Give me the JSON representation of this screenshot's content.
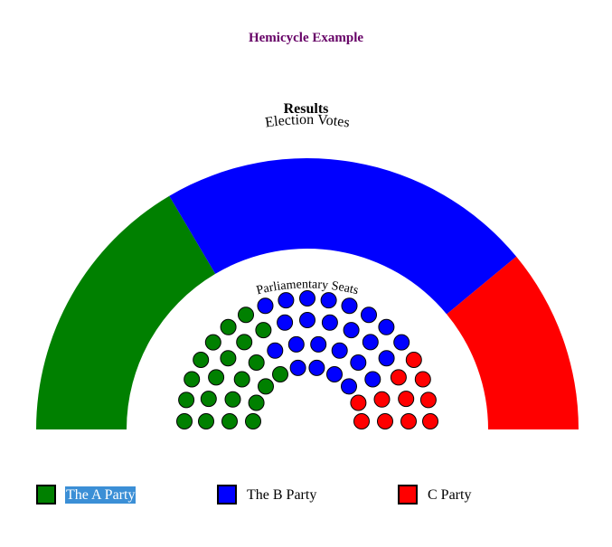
{
  "page": {
    "title": "Hemicycle Example",
    "title_color": "#660066"
  },
  "results_title": "Results",
  "chart_data": {
    "type": "pie",
    "subtype": "hemicycle",
    "outer_ring_label": "Election Votes",
    "inner_seats_label": "Parliamentary Seats",
    "categories": [
      "The A Party",
      "The B Party",
      "C Party"
    ],
    "colors": [
      "#008000",
      "#0000ff",
      "#ff0000"
    ],
    "votes": [
      33,
      45,
      22
    ],
    "seats": [
      21,
      24,
      11
    ],
    "seat_rows": [
      10,
      12,
      15,
      19
    ]
  },
  "legend": {
    "items": [
      {
        "label": "The A Party",
        "color": "#008000",
        "selected": true
      },
      {
        "label": "The B Party",
        "color": "#0000ff",
        "selected": false
      },
      {
        "label": "C Party",
        "color": "#ff0000",
        "selected": false
      }
    ]
  }
}
